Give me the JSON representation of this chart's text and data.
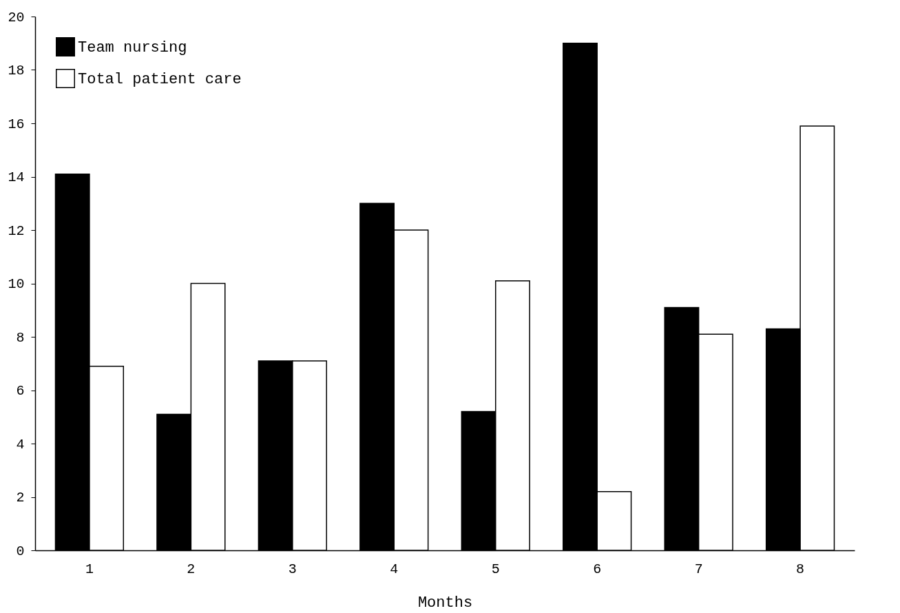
{
  "chart_data": {
    "type": "bar",
    "xlabel": "Months",
    "categories": [
      "1",
      "2",
      "3",
      "4",
      "5",
      "6",
      "7",
      "8"
    ],
    "series": [
      {
        "name": "Team nursing",
        "color": "#000000",
        "values": [
          14.1,
          5.1,
          7.1,
          13.0,
          5.2,
          19.0,
          9.1,
          8.3
        ]
      },
      {
        "name": "Total patient care",
        "color": "#ffffff",
        "values": [
          6.9,
          10.0,
          7.1,
          12.0,
          10.1,
          2.2,
          8.1,
          15.9
        ]
      }
    ],
    "ylim": [
      0,
      20
    ],
    "yticks": [
      0,
      2,
      4,
      6,
      8,
      10,
      12,
      14,
      16,
      18,
      20
    ],
    "grid": false,
    "legend": "top left"
  }
}
